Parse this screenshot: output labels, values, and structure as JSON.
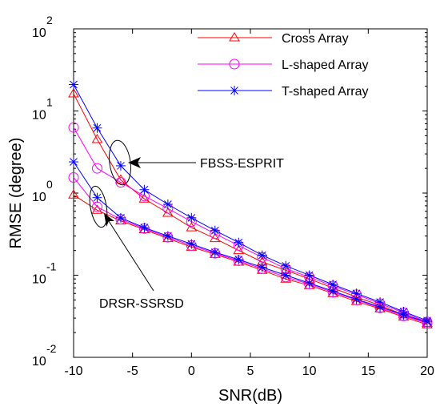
{
  "chart_data": {
    "type": "line",
    "xlabel": "SNR(dB)",
    "ylabel": "RMSE (degree)",
    "x": [
      -10,
      -8,
      -6,
      -4,
      -2,
      0,
      2,
      4,
      6,
      8,
      10,
      12,
      14,
      16,
      18,
      20
    ],
    "xlim": [
      -10,
      20
    ],
    "ylim": [
      0.01,
      100
    ],
    "yscale": "log",
    "xticks": [
      -10,
      -5,
      0,
      5,
      10,
      15,
      20
    ],
    "xtick_labels": [
      "-10",
      "-5",
      "0",
      "5",
      "10",
      "15",
      "20"
    ],
    "yticks": [
      {
        "base": "10",
        "exp": "-2"
      },
      {
        "base": "10",
        "exp": "-1"
      },
      {
        "base": "10",
        "exp": "0"
      },
      {
        "base": "10",
        "exp": "1"
      },
      {
        "base": "10",
        "exp": "2"
      }
    ],
    "legend_position": "top-right",
    "grid": false,
    "series": [
      {
        "name": "Cross Array",
        "method": "FBSS-ESPRIT",
        "color": "#ff0000",
        "marker": "triangle",
        "values": [
          16.2,
          4.5,
          1.45,
          0.85,
          0.57,
          0.38,
          0.28,
          0.2,
          0.145,
          0.115,
          0.09,
          0.07,
          0.054,
          0.043,
          0.033,
          0.026
        ]
      },
      {
        "name": "L-shaped Array",
        "method": "FBSS-ESPRIT",
        "color": "#ff00ff",
        "marker": "circle",
        "values": [
          6.3,
          2.0,
          1.35,
          0.92,
          0.65,
          0.45,
          0.32,
          0.23,
          0.165,
          0.12,
          0.095,
          0.074,
          0.058,
          0.045,
          0.035,
          0.027
        ]
      },
      {
        "name": "T-shaped Array",
        "method": "FBSS-ESPRIT",
        "color": "#0000ff",
        "marker": "star",
        "values": [
          21.0,
          6.2,
          2.15,
          1.1,
          0.73,
          0.5,
          0.35,
          0.25,
          0.175,
          0.13,
          0.1,
          0.077,
          0.06,
          0.047,
          0.036,
          0.028
        ]
      },
      {
        "name": "Cross Array",
        "method": "DRSR-SSRSD",
        "color": "#ff0000",
        "marker": "triangle",
        "values": [
          0.95,
          0.62,
          0.46,
          0.36,
          0.28,
          0.22,
          0.18,
          0.145,
          0.115,
          0.09,
          0.075,
          0.06,
          0.048,
          0.039,
          0.031,
          0.025
        ]
      },
      {
        "name": "L-shaped Array",
        "method": "DRSR-SSRSD",
        "color": "#ff00ff",
        "marker": "circle",
        "values": [
          1.55,
          0.68,
          0.48,
          0.37,
          0.29,
          0.23,
          0.185,
          0.15,
          0.12,
          0.095,
          0.078,
          0.062,
          0.05,
          0.04,
          0.032,
          0.026
        ]
      },
      {
        "name": "T-shaped Array",
        "method": "DRSR-SSRSD",
        "color": "#0000ff",
        "marker": "star",
        "values": [
          2.4,
          0.88,
          0.5,
          0.38,
          0.3,
          0.24,
          0.19,
          0.155,
          0.125,
          0.1,
          0.08,
          0.064,
          0.051,
          0.041,
          0.033,
          0.027
        ]
      }
    ],
    "legend": [
      {
        "label": "Cross Array",
        "color": "#ff0000",
        "marker": "triangle"
      },
      {
        "label": "L-shaped Array",
        "color": "#ff00ff",
        "marker": "circle"
      },
      {
        "label": "T-shaped Array",
        "color": "#0000ff",
        "marker": "star"
      }
    ],
    "annotations": [
      {
        "text": "FBSS-ESPRIT",
        "target_x": -6,
        "target_y": 1.75
      },
      {
        "text": "DRSR-SSRSD",
        "target_x": -8,
        "target_y": 0.75
      }
    ]
  }
}
